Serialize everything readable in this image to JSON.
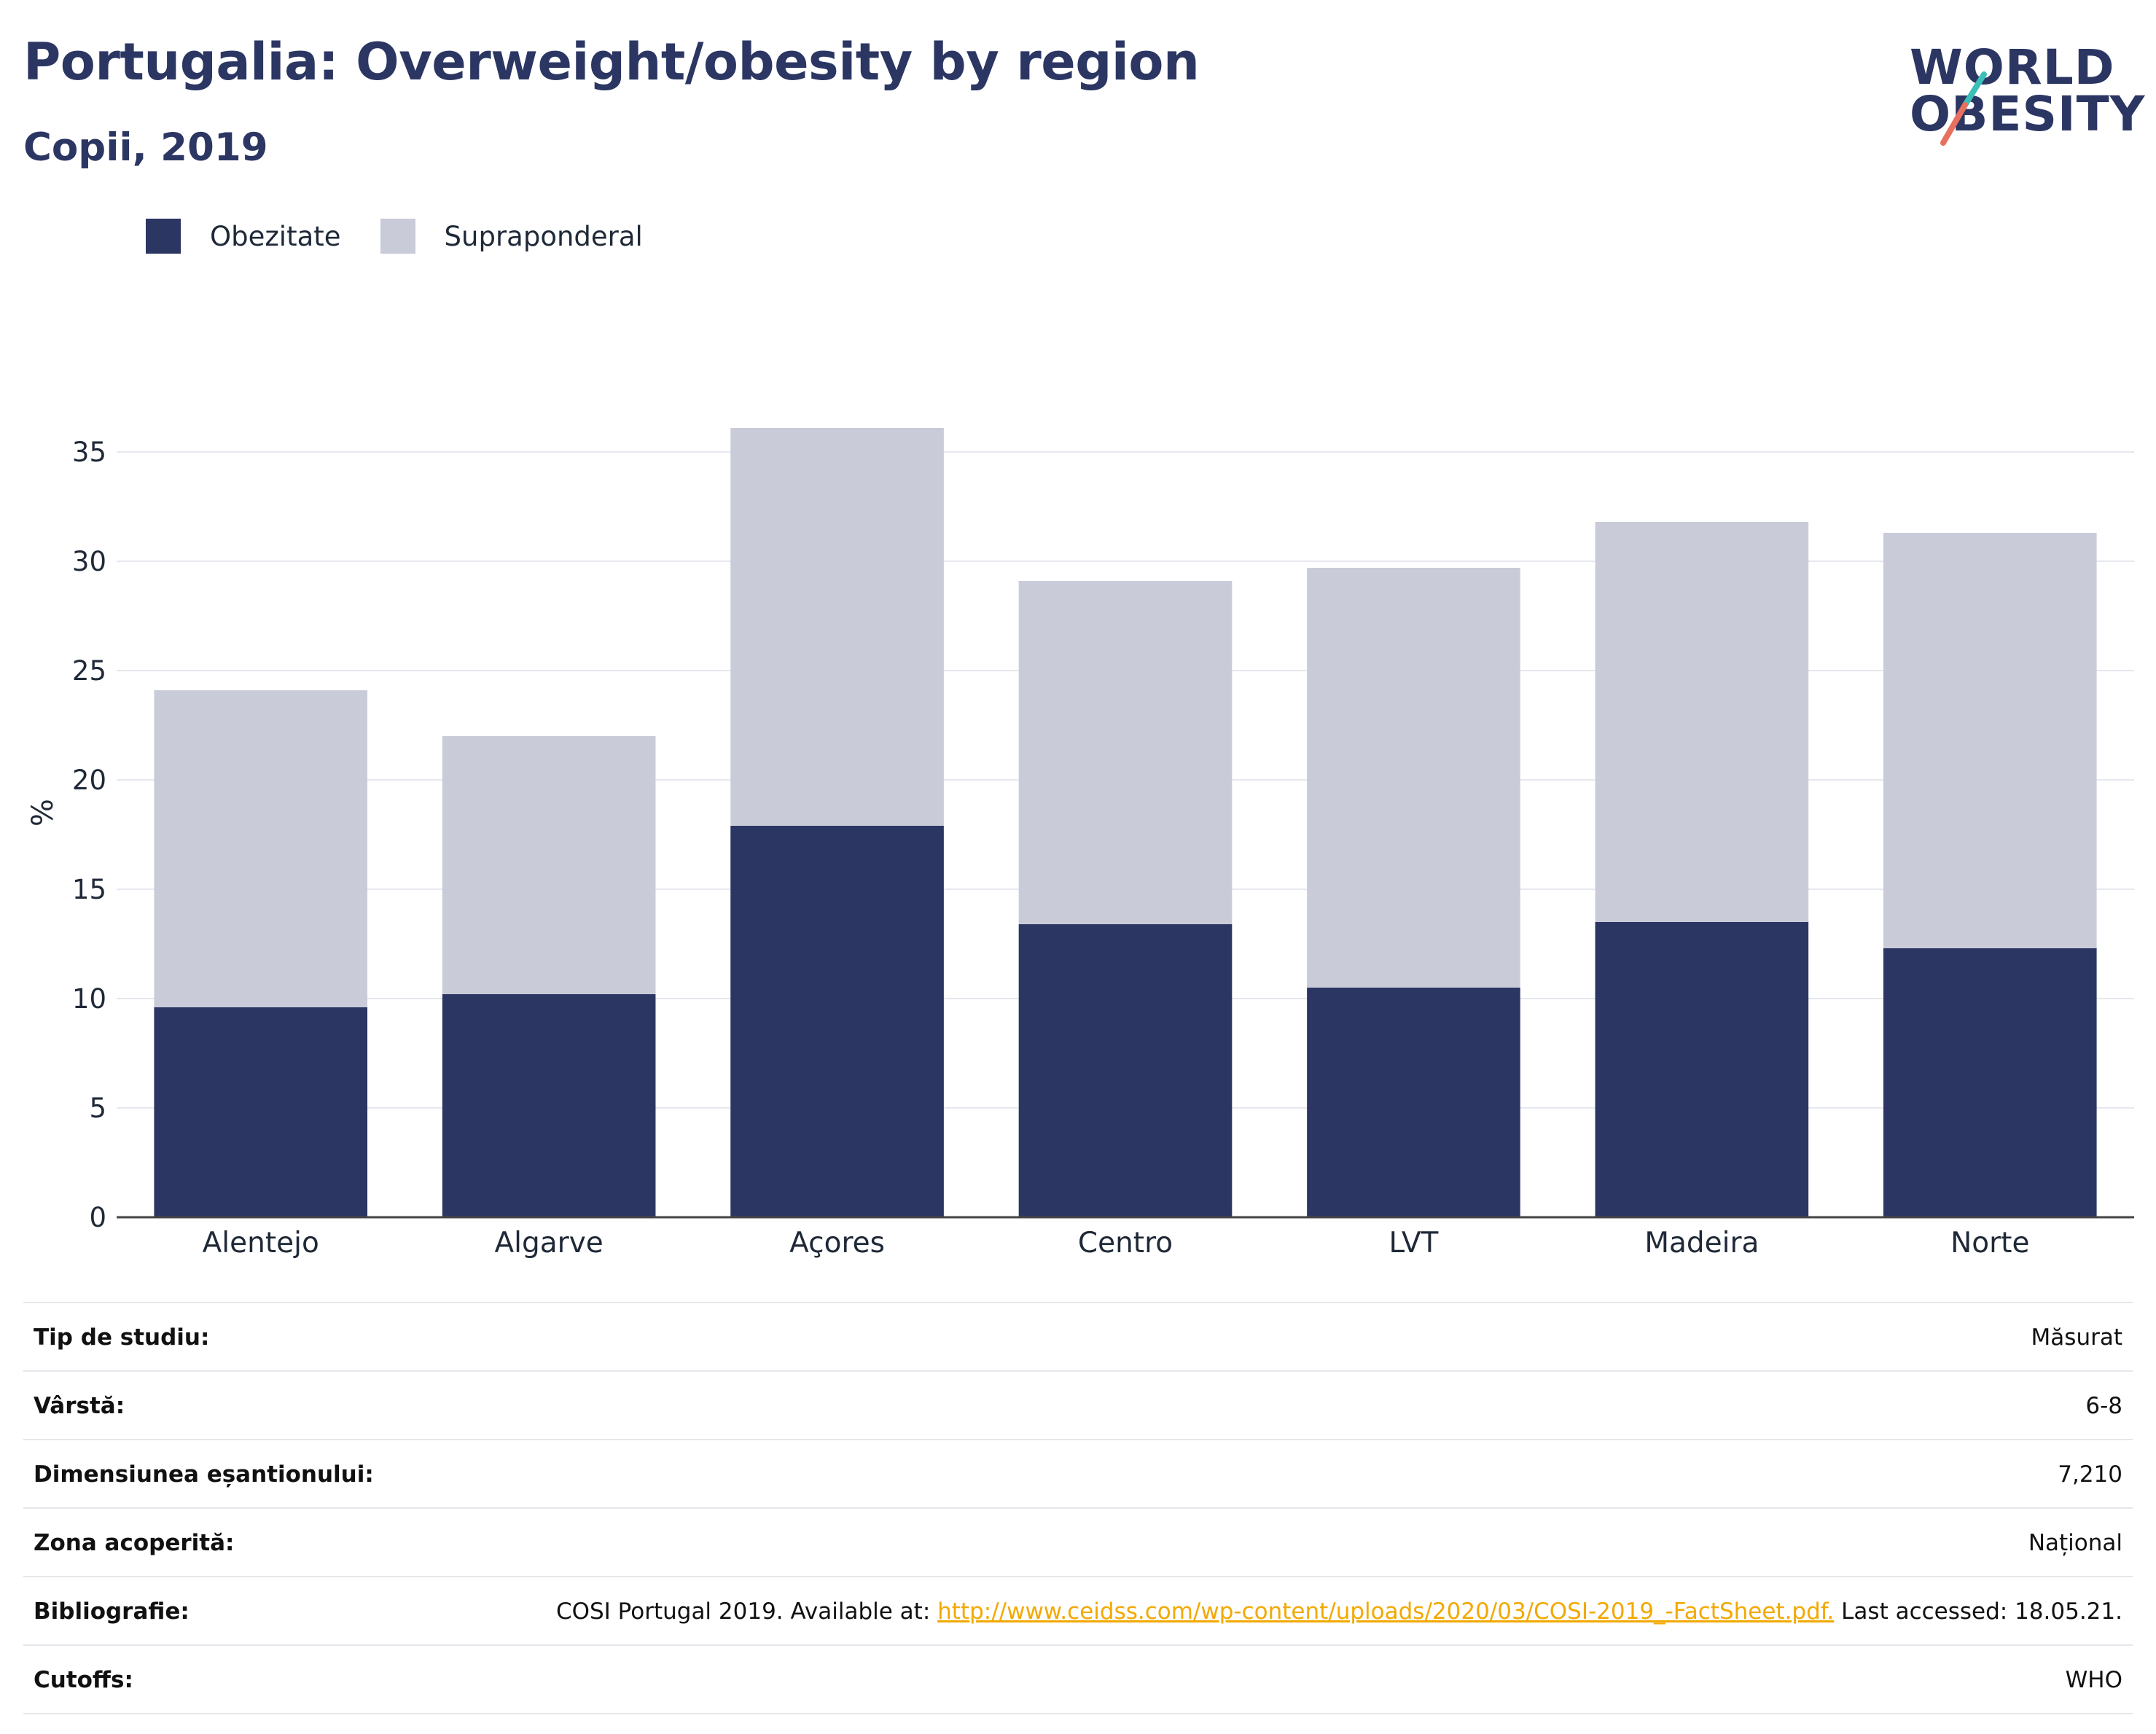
{
  "header": {
    "title": "Portugalia: Overweight/obesity by region",
    "subtitle": "Copii, 2019"
  },
  "logo": {
    "line1": "WORLD",
    "line2": "OBESITY",
    "colors": {
      "text": "#2b3663",
      "slash_top": "#3bbfb8",
      "slash_bottom": "#e8705f"
    }
  },
  "legend": {
    "items": [
      {
        "label": "Obezitate",
        "color": "#2b3663"
      },
      {
        "label": "Supraponderal",
        "color": "#c9ccd8"
      }
    ]
  },
  "chart_data": {
    "type": "bar",
    "stacked": true,
    "categories": [
      "Alentejo",
      "Algarve",
      "Açores",
      "Centro",
      "LVT",
      "Madeira",
      "Norte"
    ],
    "series": [
      {
        "name": "Obezitate",
        "color": "#2b3663",
        "values": [
          9.6,
          10.2,
          17.9,
          13.4,
          10.5,
          13.5,
          12.3
        ]
      },
      {
        "name": "Supraponderal",
        "color": "#c9ccd8",
        "values": [
          14.5,
          11.8,
          18.2,
          15.7,
          19.2,
          18.3,
          19.0
        ]
      }
    ],
    "ylabel": "%",
    "ylim": [
      0,
      37
    ],
    "yticks": [
      0,
      5,
      10,
      15,
      20,
      25,
      30,
      35
    ],
    "grid": true,
    "legend_position": "top-left"
  },
  "meta": {
    "rows": [
      {
        "key": "Tip de studiu:",
        "value": "Măsurat"
      },
      {
        "key": "Vârstă:",
        "value": "6-8"
      },
      {
        "key": "Dimensiunea eșantionului:",
        "value": "7,210"
      },
      {
        "key": "Zona acoperită:",
        "value": "Național"
      },
      {
        "key": "Bibliografie:",
        "value_prefix": "COSI Portugal 2019. Available at: ",
        "link": "http://www.ceidss.com/wp-content/uploads/2020/03/COSI-2019_-FactSheet.pdf.",
        "value_suffix": " Last accessed: 18.05.21."
      },
      {
        "key": "Cutoffs:",
        "value": "WHO"
      }
    ]
  }
}
